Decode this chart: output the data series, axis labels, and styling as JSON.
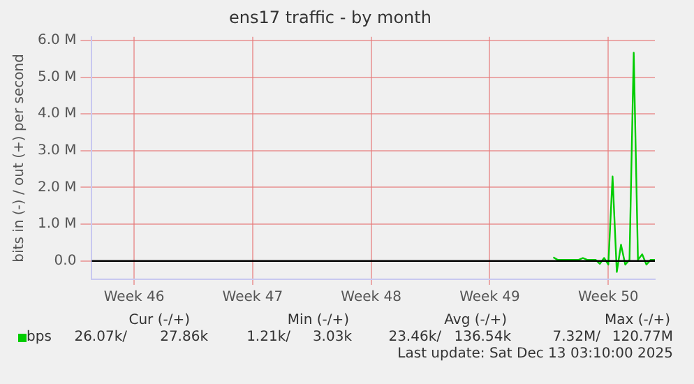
{
  "chart_data": {
    "type": "line",
    "title": "ens17 traffic - by month",
    "ylabel": "bits in (-) / out (+) per second",
    "categories": [
      null,
      null,
      null,
      null,
      null,
      null,
      null,
      null,
      null,
      null,
      "Week 46",
      null,
      null,
      null,
      null,
      null,
      null,
      null,
      null,
      null,
      null,
      null,
      null,
      null,
      null,
      null,
      null,
      null,
      null,
      null,
      null,
      null,
      null,
      null,
      null,
      null,
      null,
      null,
      "Week 47",
      null,
      null,
      null,
      null,
      null,
      null,
      null,
      null,
      null,
      null,
      null,
      null,
      null,
      null,
      null,
      null,
      null,
      null,
      null,
      null,
      null,
      null,
      null,
      null,
      null,
      null,
      null,
      "Week 48",
      null,
      null,
      null,
      null,
      null,
      null,
      null,
      null,
      null,
      null,
      null,
      null,
      null,
      null,
      null,
      null,
      null,
      null,
      null,
      null,
      null,
      null,
      null,
      null,
      null,
      null,
      null,
      "Week 49",
      null,
      null,
      null,
      null,
      null,
      null,
      null,
      null,
      null,
      null,
      null,
      null,
      null,
      null,
      null,
      null,
      null,
      null,
      null,
      null,
      null,
      null,
      null,
      null,
      null,
      null,
      null,
      "Week 50",
      null,
      null,
      null,
      null,
      null,
      null,
      null,
      null,
      null,
      null,
      null
    ],
    "series": [
      {
        "name": "bps",
        "color": "#00cc00",
        "values": [
          null,
          null,
          null,
          null,
          null,
          null,
          null,
          null,
          null,
          null,
          null,
          null,
          null,
          null,
          null,
          null,
          null,
          null,
          null,
          null,
          null,
          null,
          null,
          null,
          null,
          null,
          null,
          null,
          null,
          null,
          null,
          null,
          null,
          null,
          null,
          null,
          null,
          null,
          null,
          null,
          null,
          null,
          null,
          null,
          null,
          null,
          null,
          null,
          null,
          null,
          null,
          null,
          null,
          null,
          null,
          null,
          null,
          null,
          null,
          null,
          null,
          null,
          null,
          null,
          null,
          null,
          null,
          null,
          null,
          null,
          null,
          null,
          null,
          null,
          null,
          null,
          null,
          null,
          null,
          null,
          null,
          null,
          null,
          null,
          null,
          null,
          null,
          null,
          null,
          null,
          null,
          null,
          null,
          null,
          null,
          null,
          null,
          null,
          null,
          null,
          null,
          null,
          null,
          null,
          null,
          null,
          null,
          null,
          null,
          100000,
          30000,
          30000,
          30000,
          30000,
          30000,
          30000,
          80000,
          30000,
          30000,
          30000,
          -80000,
          80000,
          -100000,
          2300000,
          -300000,
          440000,
          -100000,
          30000,
          5670000,
          30000,
          180000,
          -100000,
          30000,
          30000
        ]
      }
    ],
    "ylim": [
      -500000,
      6100000
    ],
    "yticks": [
      {
        "value": 0,
        "label": "0.0"
      },
      {
        "value": 1000000,
        "label": "1.0 M"
      },
      {
        "value": 2000000,
        "label": "2.0 M"
      },
      {
        "value": 3000000,
        "label": "3.0 M"
      },
      {
        "value": 4000000,
        "label": "4.0 M"
      },
      {
        "value": 5000000,
        "label": "5.0 M"
      },
      {
        "value": 6000000,
        "label": "6.0 M"
      }
    ],
    "ref_lines": [
      {
        "axis": "y",
        "value": 0,
        "color": "#000000"
      }
    ],
    "grid": true,
    "legend": "bottom left",
    "marker": "none",
    "line_style": "solid",
    "annotations": [
      "Cur (-/+)",
      "Min (-/+)",
      "Avg (-/+)",
      "Max (-/+)",
      "26.07k/",
      "27.86k",
      "1.21k/",
      "3.03k",
      "23.46k/",
      "136.54k",
      "7.32M/",
      "120.77M",
      "Last update: Sat Dec 13 03:10:00 2025"
    ]
  }
}
